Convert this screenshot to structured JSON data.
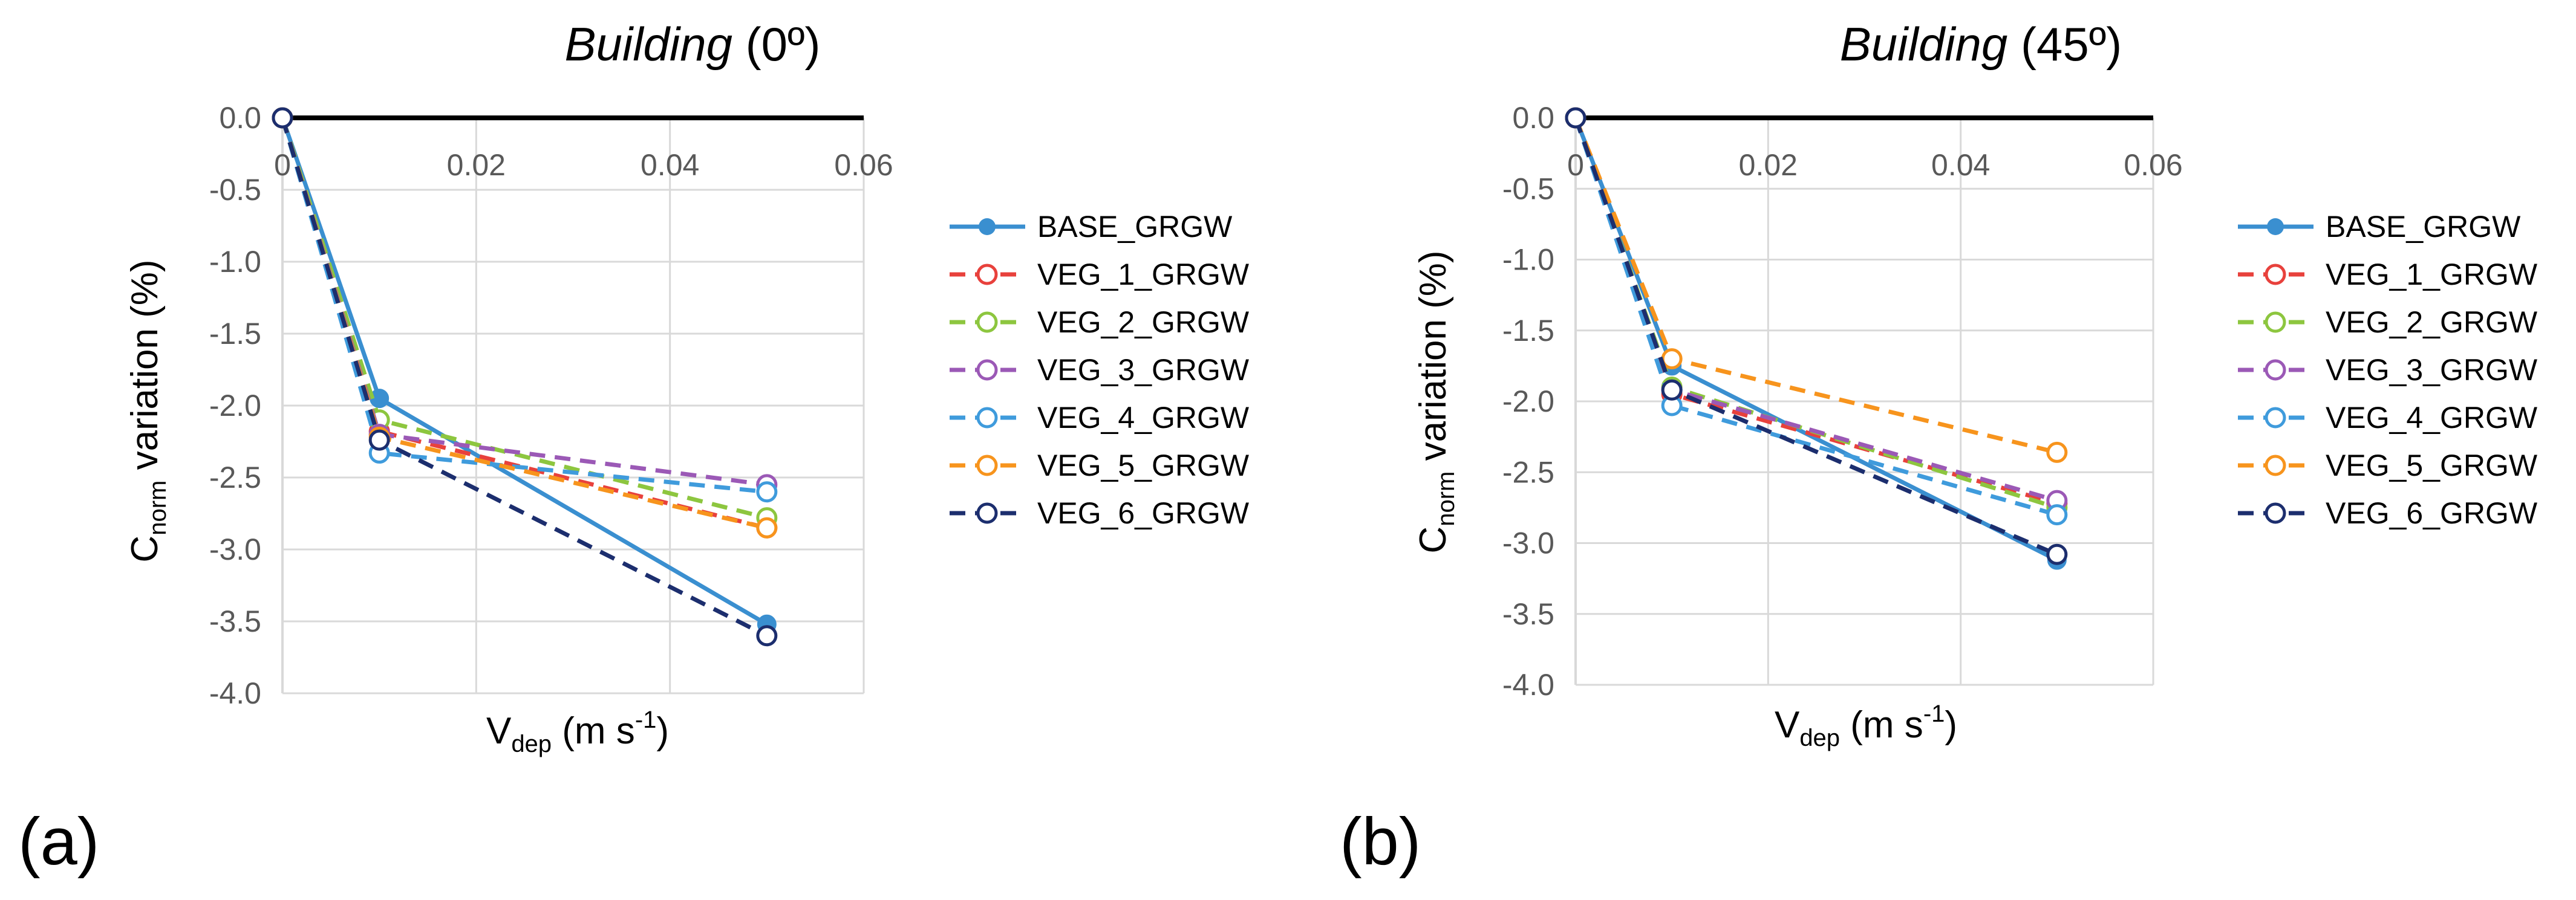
{
  "colors": {
    "BASE_GRGW": "#3a8fd0",
    "VEG_1_GRGW": "#e8413c",
    "VEG_2_GRGW": "#8dc63f",
    "VEG_3_GRGW": "#9b59b6",
    "VEG_4_GRGW": "#3f9bdc",
    "VEG_5_GRGW": "#f7941d",
    "VEG_6_GRGW": "#1c2e6e",
    "grid": "#d9d9d9",
    "axis": "#000000"
  },
  "chart_data": [
    {
      "type": "line",
      "panel_label": "(a)",
      "title_italic": "Building",
      "title_rest": " (0º)",
      "xlabel_main": "V",
      "xlabel_sub": "dep",
      "xlabel_unit": " (m s",
      "xlabel_exp": "-1",
      "xlabel_close": ")",
      "ylabel_main": "C",
      "ylabel_sub": "norm",
      "ylabel_rest": " variation (%)",
      "xlim": [
        0,
        0.06
      ],
      "ylim": [
        -4.0,
        0.0
      ],
      "x_ticks": [
        "0",
        "0.02",
        "0.04",
        "0.06"
      ],
      "y_ticks": [
        "0.0",
        "-0.5",
        "-1.0",
        "-1.5",
        "-2.0",
        "-2.5",
        "-3.0",
        "-3.5",
        "-4.0"
      ],
      "x": [
        0,
        0.01,
        0.05
      ],
      "legend_position": "right",
      "series": [
        {
          "name": "BASE_GRGW",
          "values": [
            0,
            -1.95,
            -3.52
          ],
          "style": "solid",
          "marker": "filled"
        },
        {
          "name": "VEG_1_GRGW",
          "values": [
            0,
            -2.18,
            -2.85
          ],
          "style": "dashed",
          "marker": "open"
        },
        {
          "name": "VEG_2_GRGW",
          "values": [
            0,
            -2.1,
            -2.78
          ],
          "style": "dashed",
          "marker": "open"
        },
        {
          "name": "VEG_3_GRGW",
          "values": [
            0,
            -2.2,
            -2.55
          ],
          "style": "dashed",
          "marker": "open"
        },
        {
          "name": "VEG_4_GRGW",
          "values": [
            0,
            -2.33,
            -2.6
          ],
          "style": "dashed",
          "marker": "open"
        },
        {
          "name": "VEG_5_GRGW",
          "values": [
            0,
            -2.22,
            -2.85
          ],
          "style": "dashed",
          "marker": "open"
        },
        {
          "name": "VEG_6_GRGW",
          "values": [
            0,
            -2.24,
            -3.6
          ],
          "style": "dashed",
          "marker": "open"
        }
      ]
    },
    {
      "type": "line",
      "panel_label": "(b)",
      "title_italic": "Building",
      "title_rest": " (45º)",
      "xlabel_main": "V",
      "xlabel_sub": "dep",
      "xlabel_unit": " (m s",
      "xlabel_exp": "-1",
      "xlabel_close": ")",
      "ylabel_main": "C",
      "ylabel_sub": "norm",
      "ylabel_rest": " variation (%)",
      "xlim": [
        0,
        0.06
      ],
      "ylim": [
        -4.0,
        0.0
      ],
      "x_ticks": [
        "0",
        "0.02",
        "0.04",
        "0.06"
      ],
      "y_ticks": [
        "0.0",
        "-0.5",
        "-1.0",
        "-1.5",
        "-2.0",
        "-2.5",
        "-3.0",
        "-3.5",
        "-4.0"
      ],
      "x": [
        0,
        0.01,
        0.05
      ],
      "legend_position": "right",
      "series": [
        {
          "name": "BASE_GRGW",
          "values": [
            0,
            -1.75,
            -3.12
          ],
          "style": "solid",
          "marker": "filled"
        },
        {
          "name": "VEG_1_GRGW",
          "values": [
            0,
            -1.95,
            -2.72
          ],
          "style": "dashed",
          "marker": "open"
        },
        {
          "name": "VEG_2_GRGW",
          "values": [
            0,
            -1.9,
            -2.75
          ],
          "style": "dashed",
          "marker": "open"
        },
        {
          "name": "VEG_3_GRGW",
          "values": [
            0,
            -1.92,
            -2.7
          ],
          "style": "dashed",
          "marker": "open"
        },
        {
          "name": "VEG_4_GRGW",
          "values": [
            0,
            -2.03,
            -2.8
          ],
          "style": "dashed",
          "marker": "open"
        },
        {
          "name": "VEG_5_GRGW",
          "values": [
            0,
            -1.7,
            -2.36
          ],
          "style": "dashed",
          "marker": "open"
        },
        {
          "name": "VEG_6_GRGW",
          "values": [
            0,
            -1.92,
            -3.08
          ],
          "style": "dashed",
          "marker": "open"
        }
      ]
    }
  ]
}
